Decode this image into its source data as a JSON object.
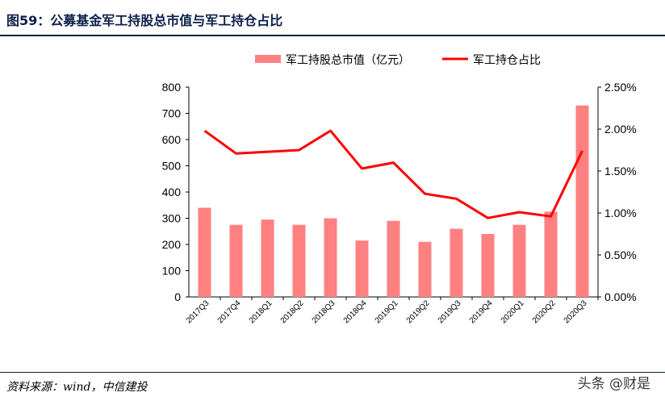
{
  "header": {
    "title": "图59：公募基金军工持股总市值与军工持仓占比"
  },
  "footer": {
    "source": "资料来源：wind，中信建投",
    "watermark": "头条 @财是"
  },
  "chart_data": {
    "type": "bar",
    "categories": [
      "2017Q3",
      "2017Q4",
      "2018Q1",
      "2018Q2",
      "2018Q3",
      "2018Q4",
      "2019Q1",
      "2019Q2",
      "2019Q3",
      "2019Q4",
      "2020Q1",
      "2020Q2",
      "2020Q3"
    ],
    "series": [
      {
        "name": "军工持股总市值（亿元）",
        "type": "bar",
        "axis": "left",
        "color": "#ff8080",
        "values": [
          340,
          275,
          295,
          275,
          300,
          215,
          290,
          210,
          260,
          240,
          275,
          325,
          730
        ]
      },
      {
        "name": "军工持仓占比",
        "type": "line",
        "axis": "right",
        "color": "#ff0000",
        "values": [
          1.98,
          1.71,
          1.73,
          1.75,
          1.98,
          1.53,
          1.6,
          1.23,
          1.17,
          0.94,
          1.01,
          0.96,
          1.74
        ]
      }
    ],
    "y_left": {
      "min": 0,
      "max": 800,
      "ticks": [
        "0",
        "100",
        "200",
        "300",
        "400",
        "500",
        "600",
        "700",
        "800"
      ]
    },
    "y_right": {
      "min": 0,
      "max": 2.5,
      "ticks": [
        "0.00%",
        "0.50%",
        "1.00%",
        "1.50%",
        "2.00%",
        "2.50%"
      ]
    },
    "grid": false,
    "legend_position": "top"
  }
}
